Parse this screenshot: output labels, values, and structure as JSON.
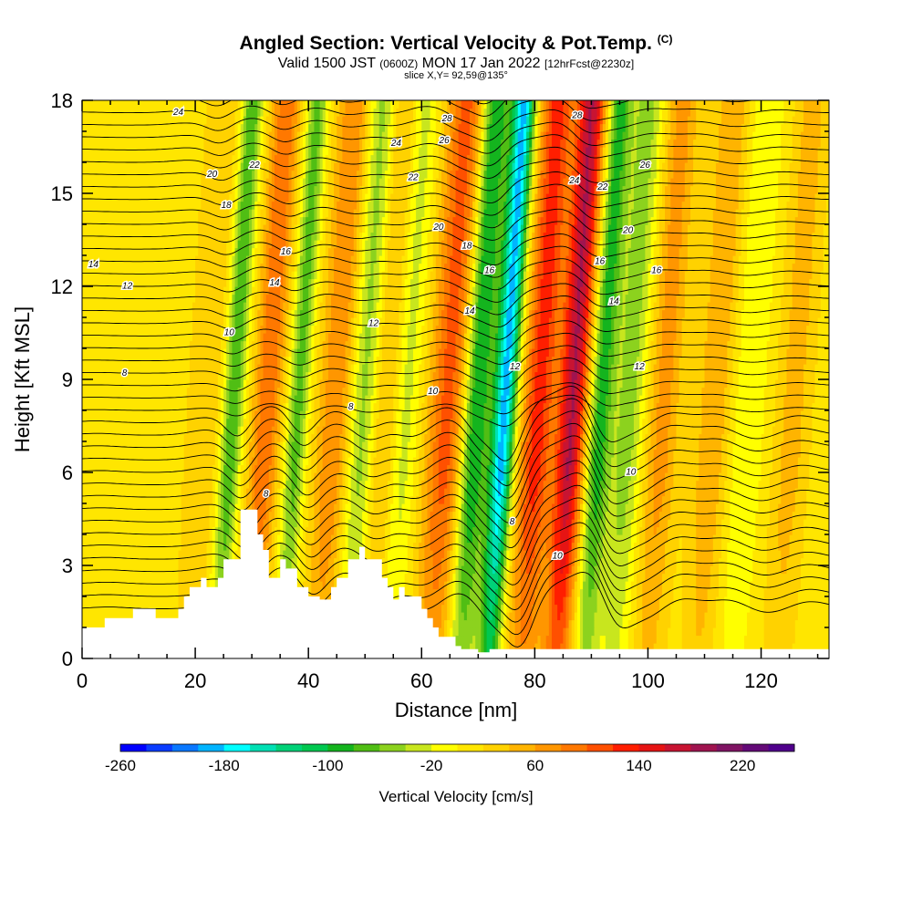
{
  "title": {
    "main": "Angled Section: Vertical Velocity & Pot.Temp.",
    "main_tag": "(C)",
    "valid_prefix": "Valid 1500 JST",
    "valid_z": "(0600Z)",
    "valid_date": "MON 17 Jan 2022",
    "valid_fcst": "[12hrFcst@2230z]",
    "slice": "slice X,Y= 92,59@135°"
  },
  "chart_data": {
    "type": "heatmap",
    "xlabel": "Distance [nm]",
    "ylabel": "Height [Kft MSL]",
    "xlim": [
      0,
      132
    ],
    "ylim": [
      0,
      18
    ],
    "x_ticks": [
      0,
      20,
      40,
      60,
      80,
      100,
      120
    ],
    "y_ticks": [
      0,
      3,
      6,
      9,
      12,
      15,
      18
    ],
    "colorbar": {
      "label": "Vertical Velocity [cm/s]",
      "range": [
        -260,
        260
      ],
      "tick_labels": [
        -260,
        -180,
        -100,
        -20,
        60,
        140,
        220
      ],
      "colors": [
        "#0000ff",
        "#0a3cff",
        "#0a78ff",
        "#00b4ff",
        "#00ffff",
        "#00e0b4",
        "#00d278",
        "#00c850",
        "#14b41e",
        "#50be14",
        "#8cd21e",
        "#c8e61e",
        "#ffff00",
        "#ffe600",
        "#ffd200",
        "#ffb400",
        "#ff9600",
        "#ff7800",
        "#ff5000",
        "#ff1e00",
        "#e61414",
        "#c81432",
        "#a01450",
        "#801464",
        "#640a78",
        "#50008c"
      ]
    },
    "velocity_bands": [
      {
        "x": 2,
        "w": 3,
        "value": 10
      },
      {
        "x": 12,
        "w": 3,
        "value": 0
      },
      {
        "x": 22,
        "w": 3,
        "value": 30
      },
      {
        "x": 27,
        "w": 1.8,
        "value": -90
      },
      {
        "x": 33,
        "w": 2.5,
        "value": 90
      },
      {
        "x": 38.5,
        "w": 1.8,
        "value": -80
      },
      {
        "x": 45,
        "w": 3,
        "value": 70
      },
      {
        "x": 50,
        "w": 2.5,
        "value": -60
      },
      {
        "x": 54,
        "w": 2.5,
        "value": 40
      },
      {
        "x": 57.5,
        "w": 2.5,
        "value": -40
      },
      {
        "x": 65,
        "w": 3.5,
        "value": 100
      },
      {
        "x": 70,
        "w": 2.5,
        "value": -120
      },
      {
        "x": 75,
        "w": 2,
        "value": -200
      },
      {
        "x": 81,
        "w": 3,
        "value": 120
      },
      {
        "x": 87,
        "w": 2.5,
        "value": 170
      },
      {
        "x": 92,
        "w": 2,
        "value": -100
      },
      {
        "x": 97,
        "w": 3,
        "value": -60
      },
      {
        "x": 103,
        "w": 3,
        "value": 60
      },
      {
        "x": 112,
        "w": 3,
        "value": 50
      },
      {
        "x": 118,
        "w": 3,
        "value": -30
      },
      {
        "x": 126,
        "w": 3,
        "value": 40
      }
    ],
    "terrain": {
      "x": [
        0,
        4,
        4,
        9,
        9,
        13,
        13,
        17,
        17,
        18,
        18,
        19,
        19,
        21,
        21,
        22,
        22,
        24,
        24,
        25,
        25,
        28,
        28,
        31,
        31,
        32,
        32,
        33,
        33,
        35,
        35,
        36,
        36,
        38,
        38,
        40,
        40,
        42,
        42,
        44,
        44,
        45,
        45,
        47,
        47,
        49,
        49,
        50,
        50,
        53,
        53,
        54,
        54,
        55,
        55,
        56,
        56,
        57,
        57,
        60,
        60,
        61,
        61,
        62,
        62,
        63,
        63,
        66,
        66,
        67,
        67,
        70,
        70,
        72,
        72,
        74,
        74,
        132
      ],
      "y": [
        1,
        1,
        1.3,
        1.3,
        1.6,
        1.6,
        1.3,
        1.3,
        1.6,
        1.6,
        2,
        2,
        2.3,
        2.3,
        2.6,
        2.6,
        2.3,
        2.3,
        2.6,
        2.6,
        3.2,
        3.2,
        4.8,
        4.8,
        4,
        4,
        3.5,
        3.5,
        2.6,
        2.6,
        3.2,
        3.2,
        2.9,
        2.9,
        2.3,
        2.3,
        2.0,
        2.0,
        1.9,
        1.9,
        2.3,
        2.3,
        2.6,
        2.6,
        3.2,
        3.2,
        3.6,
        3.6,
        3.2,
        3.2,
        2.6,
        2.6,
        2.3,
        2.3,
        1.9,
        1.9,
        2.3,
        2.3,
        2.0,
        2.0,
        1.6,
        1.6,
        1.3,
        1.3,
        1.0,
        1.0,
        0.7,
        0.7,
        0.4,
        0.4,
        0.3,
        0.3,
        0.2,
        0.2,
        0.3,
        0.3,
        0.3,
        0.3
      ]
    },
    "isentrope_labels": [
      {
        "x": 2,
        "y": 12.7,
        "text": "14"
      },
      {
        "x": 8,
        "y": 12.0,
        "text": "12"
      },
      {
        "x": 7.5,
        "y": 9.2,
        "text": "8"
      },
      {
        "x": 17,
        "y": 17.6,
        "text": "24"
      },
      {
        "x": 23,
        "y": 15.6,
        "text": "20"
      },
      {
        "x": 30.5,
        "y": 15.9,
        "text": "22"
      },
      {
        "x": 25.5,
        "y": 14.6,
        "text": "18"
      },
      {
        "x": 36,
        "y": 13.1,
        "text": "16"
      },
      {
        "x": 34,
        "y": 12.1,
        "text": "14"
      },
      {
        "x": 26,
        "y": 10.5,
        "text": "10"
      },
      {
        "x": 32.5,
        "y": 5.3,
        "text": "8"
      },
      {
        "x": 47.5,
        "y": 8.1,
        "text": "8"
      },
      {
        "x": 51.5,
        "y": 10.8,
        "text": "12"
      },
      {
        "x": 55.5,
        "y": 16.6,
        "text": "24"
      },
      {
        "x": 58.5,
        "y": 15.5,
        "text": "22"
      },
      {
        "x": 64.5,
        "y": 17.4,
        "text": "28"
      },
      {
        "x": 64,
        "y": 16.7,
        "text": "26"
      },
      {
        "x": 63,
        "y": 13.9,
        "text": "20"
      },
      {
        "x": 68,
        "y": 13.3,
        "text": "18"
      },
      {
        "x": 72,
        "y": 12.5,
        "text": "16"
      },
      {
        "x": 68.5,
        "y": 11.2,
        "text": "14"
      },
      {
        "x": 62,
        "y": 8.6,
        "text": "10"
      },
      {
        "x": 76.5,
        "y": 9.4,
        "text": "12"
      },
      {
        "x": 76,
        "y": 4.4,
        "text": "8"
      },
      {
        "x": 84,
        "y": 3.3,
        "text": "10"
      },
      {
        "x": 87.5,
        "y": 17.5,
        "text": "28"
      },
      {
        "x": 87,
        "y": 15.4,
        "text": "24"
      },
      {
        "x": 92,
        "y": 15.2,
        "text": "22"
      },
      {
        "x": 96.5,
        "y": 13.8,
        "text": "20"
      },
      {
        "x": 91.5,
        "y": 12.8,
        "text": "16"
      },
      {
        "x": 94,
        "y": 11.5,
        "text": "14"
      },
      {
        "x": 98.5,
        "y": 9.4,
        "text": "12"
      },
      {
        "x": 97,
        "y": 6.0,
        "text": "10"
      },
      {
        "x": 99.5,
        "y": 15.9,
        "text": "26"
      },
      {
        "x": 101.5,
        "y": 12.5,
        "text": "16"
      }
    ]
  }
}
